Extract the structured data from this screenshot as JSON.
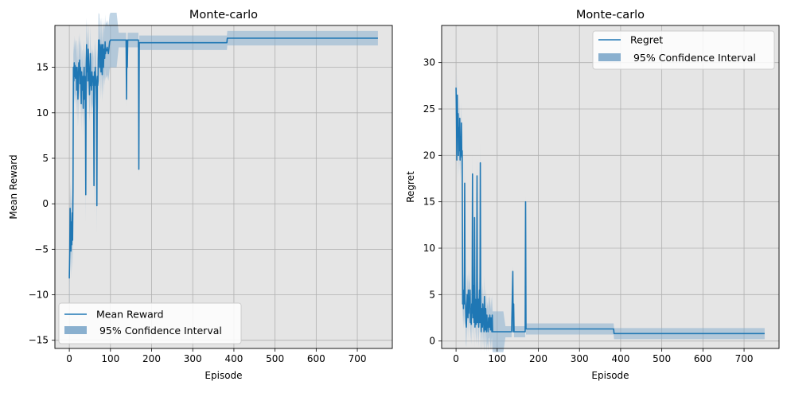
{
  "colors": {
    "line": "#1f77b4",
    "band": "#8ab0cf",
    "plot_background": "#e5e5e5",
    "grid": "#b0b0b0"
  },
  "chart_data": [
    {
      "type": "line",
      "title": "Monte-carlo",
      "xlabel": "Episode",
      "ylabel": "Mean Reward",
      "xlim": [
        -35,
        785
      ],
      "ylim": [
        -15.9,
        19.6
      ],
      "xticks": [
        0,
        100,
        200,
        300,
        400,
        500,
        600,
        700
      ],
      "yticks": [
        -15,
        -10,
        -5,
        0,
        5,
        10,
        15
      ],
      "grid": true,
      "legend_position": "lower-left",
      "legend": [
        "Mean Reward",
        " 95% Confidence Interval"
      ],
      "series": [
        {
          "name": "Mean Reward",
          "x": [
            0,
            1,
            2,
            3,
            4,
            5,
            6,
            7,
            8,
            9,
            10,
            11,
            12,
            13,
            14,
            15,
            16,
            17,
            18,
            19,
            20,
            21,
            22,
            23,
            24,
            25,
            26,
            27,
            28,
            29,
            30,
            31,
            32,
            33,
            34,
            35,
            36,
            37,
            38,
            39,
            40,
            41,
            42,
            43,
            44,
            45,
            46,
            47,
            48,
            49,
            50,
            51,
            52,
            53,
            54,
            55,
            56,
            57,
            58,
            59,
            60,
            61,
            62,
            63,
            64,
            65,
            66,
            67,
            68,
            69,
            70,
            71,
            72,
            73,
            74,
            75,
            76,
            77,
            78,
            79,
            80,
            81,
            82,
            83,
            84,
            85,
            86,
            87,
            88,
            89,
            90,
            92,
            95,
            98,
            100,
            102,
            104,
            106,
            108,
            110,
            115,
            120,
            125,
            130,
            135,
            138,
            139,
            140,
            141,
            142,
            143,
            145,
            150,
            155,
            160,
            165,
            168,
            169,
            170,
            171,
            172,
            175,
            200,
            250,
            300,
            350,
            383,
            384,
            400,
            500,
            600,
            700,
            750
          ],
          "y": [
            -8.2,
            -5.5,
            -0.5,
            -2.5,
            -5.2,
            -2.0,
            -4.5,
            -1.0,
            -4.0,
            1.5,
            15.0,
            13.5,
            15.5,
            14.0,
            15.2,
            13.8,
            15.0,
            14.8,
            12.5,
            15.0,
            14.0,
            11.5,
            13.0,
            15.5,
            14.5,
            15.8,
            13.2,
            15.0,
            14.2,
            11.0,
            14.5,
            12.5,
            13.8,
            14.0,
            10.5,
            13.5,
            15.0,
            11.5,
            14.0,
            12.8,
            1.0,
            15.0,
            17.5,
            14.5,
            16.0,
            13.5,
            17.0,
            15.5,
            14.0,
            12.0,
            13.5,
            16.5,
            13.0,
            14.0,
            12.5,
            14.5,
            13.5,
            14.0,
            13.0,
            14.0,
            2.0,
            14.5,
            13.0,
            15.0,
            14.0,
            13.5,
            12.0,
            -0.2,
            14.0,
            13.0,
            13.5,
            18.0,
            17.8,
            18.0,
            15.0,
            17.5,
            17.0,
            14.5,
            16.5,
            17.5,
            14.2,
            16.0,
            17.5,
            15.0,
            16.5,
            17.0,
            16.0,
            17.8,
            16.5,
            17.0,
            16.8,
            17.2,
            16.5,
            17.8,
            18.0,
            18.0,
            18.0,
            18.0,
            18.0,
            18.0,
            18.0,
            18.0,
            18.0,
            18.0,
            18.0,
            18.0,
            11.5,
            18.0,
            15.0,
            18.0,
            18.0,
            18.0,
            18.0,
            18.0,
            18.0,
            18.0,
            18.0,
            3.8,
            17.7,
            17.7,
            17.7,
            17.7,
            17.7,
            17.7,
            17.7,
            17.7,
            17.7,
            18.2,
            18.2,
            18.2,
            18.2,
            18.2,
            18.2
          ]
        }
      ]
    },
    {
      "type": "line",
      "title": "Monte-carlo",
      "xlabel": "Episode",
      "ylabel": "Regret",
      "xlim": [
        -35,
        785
      ],
      "ylim": [
        -0.8,
        34.0
      ],
      "xticks": [
        0,
        100,
        200,
        300,
        400,
        500,
        600,
        700
      ],
      "yticks": [
        0,
        5,
        10,
        15,
        20,
        25,
        30
      ],
      "grid": true,
      "legend_position": "upper-right",
      "legend": [
        "Regret",
        " 95% Confidence Interval"
      ],
      "series": [
        {
          "name": "Regret",
          "x": [
            0,
            1,
            2,
            3,
            4,
            5,
            6,
            7,
            8,
            9,
            10,
            11,
            12,
            13,
            14,
            15,
            16,
            17,
            18,
            19,
            20,
            21,
            22,
            23,
            24,
            25,
            26,
            27,
            28,
            29,
            30,
            31,
            32,
            33,
            34,
            35,
            36,
            37,
            38,
            39,
            40,
            41,
            42,
            43,
            44,
            45,
            46,
            47,
            48,
            49,
            50,
            51,
            52,
            53,
            54,
            55,
            56,
            57,
            58,
            59,
            60,
            61,
            62,
            63,
            64,
            65,
            66,
            67,
            68,
            69,
            70,
            71,
            72,
            73,
            74,
            75,
            76,
            77,
            78,
            79,
            80,
            81,
            82,
            83,
            84,
            85,
            86,
            87,
            88,
            89,
            90,
            92,
            95,
            98,
            100,
            102,
            104,
            106,
            108,
            110,
            115,
            120,
            125,
            130,
            135,
            138,
            139,
            140,
            141,
            142,
            143,
            145,
            150,
            155,
            160,
            165,
            168,
            169,
            170,
            171,
            172,
            175,
            200,
            250,
            300,
            350,
            383,
            384,
            400,
            500,
            600,
            700,
            750
          ],
          "y": [
            27.3,
            24.0,
            19.5,
            26.5,
            22.0,
            24.5,
            20.0,
            23.0,
            20.5,
            24.0,
            19.5,
            22.0,
            20.0,
            23.5,
            19.8,
            20.5,
            4.0,
            5.5,
            3.5,
            5.0,
            4.0,
            17.0,
            4.5,
            3.8,
            2.0,
            1.5,
            3.0,
            5.0,
            4.2,
            2.5,
            5.5,
            3.0,
            4.5,
            4.0,
            5.5,
            2.0,
            3.5,
            1.8,
            4.0,
            3.0,
            18.0,
            2.5,
            3.5,
            6.0,
            2.0,
            13.3,
            1.5,
            4.5,
            3.0,
            1.8,
            3.5,
            17.8,
            2.0,
            3.0,
            4.5,
            1.5,
            3.0,
            5.5,
            2.0,
            19.2,
            3.5,
            1.0,
            2.5,
            3.5,
            1.5,
            4.0,
            3.0,
            2.0,
            1.0,
            4.8,
            2.5,
            1.2,
            3.5,
            2.0,
            1.0,
            2.8,
            1.5,
            2.0,
            1.0,
            2.5,
            2.5,
            1.5,
            2.8,
            2.0,
            1.2,
            2.5,
            2.0,
            1.0,
            2.8,
            1.0,
            1.0,
            1.0,
            1.0,
            1.0,
            1.0,
            1.0,
            1.0,
            1.0,
            1.0,
            1.0,
            1.0,
            1.0,
            1.0,
            1.0,
            1.0,
            7.5,
            1.0,
            4.0,
            1.0,
            1.0,
            1.0,
            1.0,
            1.0,
            1.0,
            1.0,
            1.0,
            1.0,
            15.0,
            1.3,
            1.3,
            1.3,
            1.3,
            1.3,
            1.3,
            1.3,
            1.3,
            1.3,
            0.8,
            0.8,
            0.8,
            0.8,
            0.8,
            0.8
          ]
        }
      ]
    }
  ]
}
